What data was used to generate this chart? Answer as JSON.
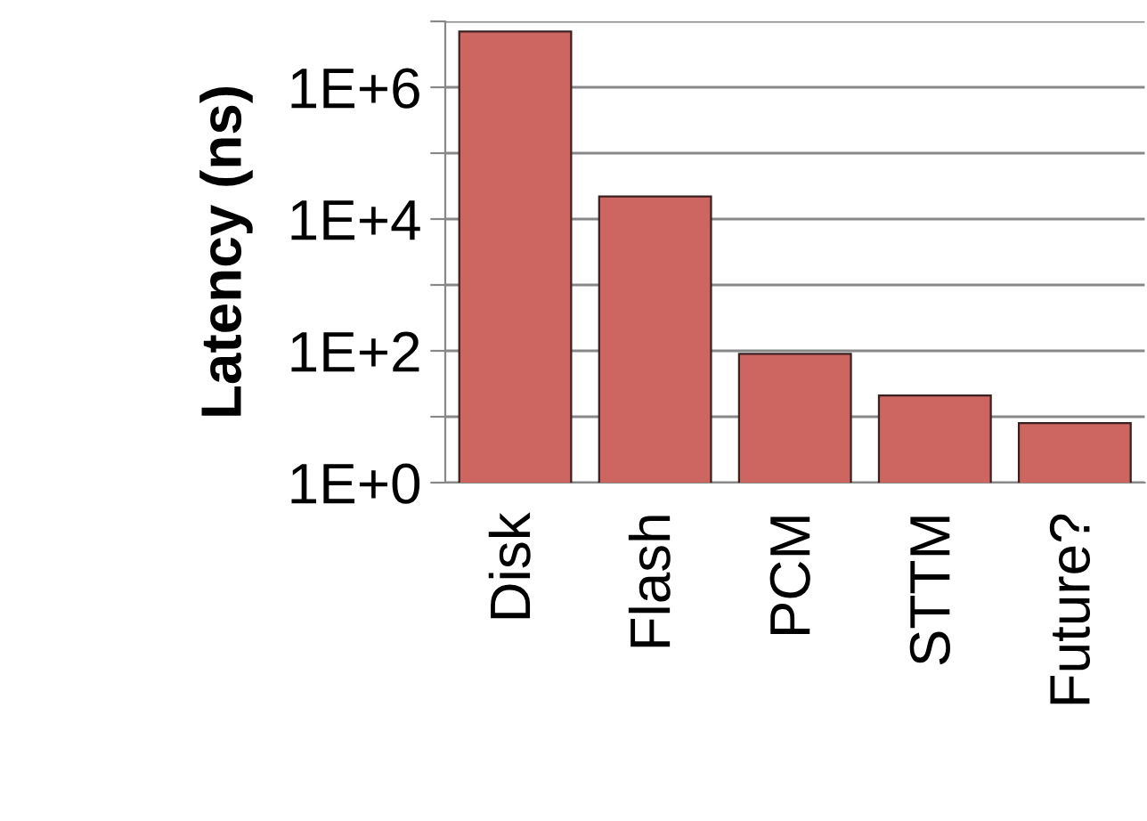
{
  "chart_data": {
    "type": "bar",
    "ylabel": "Latency (ns)",
    "categories": [
      "Disk",
      "Flash",
      "PCM",
      "STTM",
      "Future?"
    ],
    "values": [
      7000000,
      22000,
      90,
      21,
      8
    ],
    "color": "#cd6660",
    "log": "y",
    "ylim": [
      1,
      10000000
    ],
    "yticks": [
      {
        "value": 1,
        "label": "1E+0"
      },
      {
        "value": 10,
        "label": null
      },
      {
        "value": 100,
        "label": "1E+2"
      },
      {
        "value": 1000,
        "label": null
      },
      {
        "value": 10000,
        "label": "1E+4"
      },
      {
        "value": 100000,
        "label": null
      },
      {
        "value": 1000000,
        "label": "1E+6"
      },
      {
        "value": 10000000,
        "label": null
      }
    ],
    "grid": "y"
  }
}
